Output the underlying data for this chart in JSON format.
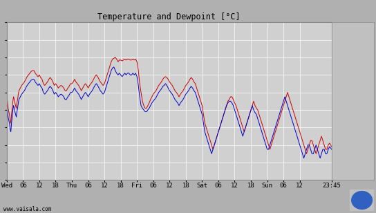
{
  "title": "Temperature and Dewpoint [°C]",
  "fig_bg_color": "#b0b0b0",
  "plot_bg_color": "#d0d0d0",
  "panel_bg_color": "#c0c0c0",
  "grid_color": "#ffffff",
  "temp_color": "#cc0000",
  "dewp_color": "#0000cc",
  "ylim": [
    -14,
    4
  ],
  "yticks": [
    -14,
    -12,
    -10,
    -8,
    -6,
    -4,
    -2,
    0,
    2,
    4
  ],
  "xlabel_bottom": "www.vaisala.com",
  "xtick_labels": [
    "Wed",
    "06",
    "12",
    "18",
    "Thu",
    "06",
    "12",
    "18",
    "Fri",
    "06",
    "12",
    "18",
    "Sat",
    "06",
    "12",
    "18",
    "Sun",
    "06",
    "12",
    "23:45"
  ],
  "xtick_positions": [
    0,
    6,
    12,
    18,
    24,
    30,
    36,
    42,
    48,
    54,
    60,
    66,
    72,
    78,
    84,
    90,
    96,
    102,
    108,
    119.75
  ],
  "total_hours": 119.75,
  "line_width": 0.7,
  "temp_data": [
    [
      0,
      -4.5
    ],
    [
      0.25,
      -5.0
    ],
    [
      0.5,
      -5.8
    ],
    [
      0.75,
      -6.2
    ],
    [
      1,
      -6.5
    ],
    [
      1.25,
      -7.2
    ],
    [
      1.5,
      -7.5
    ],
    [
      1.75,
      -6.5
    ],
    [
      2,
      -5.8
    ],
    [
      2.25,
      -5.0
    ],
    [
      2.5,
      -4.5
    ],
    [
      2.75,
      -4.8
    ],
    [
      3,
      -5.2
    ],
    [
      3.25,
      -5.5
    ],
    [
      3.5,
      -5.8
    ],
    [
      3.75,
      -5.2
    ],
    [
      4,
      -4.8
    ],
    [
      4.25,
      -4.2
    ],
    [
      4.5,
      -3.8
    ],
    [
      5,
      -3.5
    ],
    [
      5.5,
      -3.2
    ],
    [
      6,
      -3.0
    ],
    [
      6.5,
      -2.8
    ],
    [
      7,
      -2.5
    ],
    [
      7.5,
      -2.2
    ],
    [
      8,
      -2.0
    ],
    [
      8.5,
      -1.8
    ],
    [
      9,
      -1.6
    ],
    [
      9.5,
      -1.5
    ],
    [
      10,
      -1.5
    ],
    [
      10.5,
      -1.8
    ],
    [
      11,
      -2.0
    ],
    [
      11.5,
      -2.2
    ],
    [
      12,
      -2.0
    ],
    [
      12.5,
      -2.3
    ],
    [
      13,
      -2.5
    ],
    [
      13.5,
      -3.0
    ],
    [
      14,
      -3.2
    ],
    [
      14.5,
      -3.0
    ],
    [
      15,
      -2.8
    ],
    [
      15.5,
      -2.5
    ],
    [
      16,
      -2.3
    ],
    [
      16.5,
      -2.5
    ],
    [
      17,
      -2.8
    ],
    [
      17.5,
      -3.2
    ],
    [
      18,
      -3.0
    ],
    [
      18.5,
      -3.2
    ],
    [
      19,
      -3.5
    ],
    [
      19.5,
      -3.3
    ],
    [
      20,
      -3.2
    ],
    [
      20.5,
      -3.3
    ],
    [
      21,
      -3.5
    ],
    [
      21.5,
      -3.8
    ],
    [
      22,
      -3.8
    ],
    [
      22.5,
      -3.5
    ],
    [
      23,
      -3.3
    ],
    [
      23.5,
      -3.0
    ],
    [
      24,
      -3.0
    ],
    [
      24.5,
      -2.8
    ],
    [
      25,
      -2.5
    ],
    [
      25.5,
      -2.8
    ],
    [
      26,
      -3.0
    ],
    [
      26.5,
      -3.2
    ],
    [
      27,
      -3.5
    ],
    [
      27.5,
      -3.8
    ],
    [
      28,
      -3.5
    ],
    [
      28.5,
      -3.2
    ],
    [
      29,
      -3.0
    ],
    [
      29.5,
      -3.2
    ],
    [
      30,
      -3.5
    ],
    [
      30.5,
      -3.2
    ],
    [
      31,
      -3.0
    ],
    [
      31.5,
      -2.8
    ],
    [
      32,
      -2.5
    ],
    [
      32.5,
      -2.2
    ],
    [
      33,
      -2.0
    ],
    [
      33.5,
      -2.2
    ],
    [
      34,
      -2.5
    ],
    [
      34.5,
      -2.8
    ],
    [
      35,
      -3.0
    ],
    [
      35.5,
      -3.2
    ],
    [
      36,
      -3.0
    ],
    [
      36.5,
      -2.5
    ],
    [
      37,
      -2.0
    ],
    [
      37.5,
      -1.5
    ],
    [
      38,
      -1.0
    ],
    [
      38.5,
      -0.5
    ],
    [
      39,
      -0.2
    ],
    [
      39.5,
      -0.1
    ],
    [
      40,
      0.0
    ],
    [
      40.25,
      -0.1
    ],
    [
      40.5,
      -0.2
    ],
    [
      41,
      -0.5
    ],
    [
      41.5,
      -0.3
    ],
    [
      42,
      -0.3
    ],
    [
      42.5,
      -0.4
    ],
    [
      43,
      -0.3
    ],
    [
      43.5,
      -0.2
    ],
    [
      44,
      -0.3
    ],
    [
      44.5,
      -0.2
    ],
    [
      45,
      -0.2
    ],
    [
      45.5,
      -0.3
    ],
    [
      46,
      -0.3
    ],
    [
      46.5,
      -0.2
    ],
    [
      47,
      -0.3
    ],
    [
      47.5,
      -0.2
    ],
    [
      48,
      -0.5
    ],
    [
      48.5,
      -1.5
    ],
    [
      49,
      -3.0
    ],
    [
      49.5,
      -4.0
    ],
    [
      50,
      -5.0
    ],
    [
      50.5,
      -5.5
    ],
    [
      51,
      -5.8
    ],
    [
      51.5,
      -5.8
    ],
    [
      52,
      -5.5
    ],
    [
      52.5,
      -5.2
    ],
    [
      53,
      -4.8
    ],
    [
      53.5,
      -4.5
    ],
    [
      54,
      -4.2
    ],
    [
      54.5,
      -4.0
    ],
    [
      55,
      -3.8
    ],
    [
      55.5,
      -3.5
    ],
    [
      56,
      -3.2
    ],
    [
      56.5,
      -3.0
    ],
    [
      57,
      -2.8
    ],
    [
      57.5,
      -2.5
    ],
    [
      58,
      -2.3
    ],
    [
      58.5,
      -2.2
    ],
    [
      59,
      -2.3
    ],
    [
      59.5,
      -2.5
    ],
    [
      60,
      -2.8
    ],
    [
      60.5,
      -3.0
    ],
    [
      61,
      -3.2
    ],
    [
      61.5,
      -3.5
    ],
    [
      62,
      -3.8
    ],
    [
      62.5,
      -4.0
    ],
    [
      63,
      -4.2
    ],
    [
      63.5,
      -4.5
    ],
    [
      64,
      -4.2
    ],
    [
      64.5,
      -4.0
    ],
    [
      65,
      -3.8
    ],
    [
      65.5,
      -3.5
    ],
    [
      66,
      -3.2
    ],
    [
      66.5,
      -3.0
    ],
    [
      67,
      -2.8
    ],
    [
      67.5,
      -2.5
    ],
    [
      68,
      -2.3
    ],
    [
      68.5,
      -2.5
    ],
    [
      69,
      -2.8
    ],
    [
      69.5,
      -3.0
    ],
    [
      70,
      -3.5
    ],
    [
      70.5,
      -4.0
    ],
    [
      71,
      -4.5
    ],
    [
      71.5,
      -5.0
    ],
    [
      72,
      -5.5
    ],
    [
      72.5,
      -6.5
    ],
    [
      73,
      -7.5
    ],
    [
      73.5,
      -8.0
    ],
    [
      74,
      -8.5
    ],
    [
      74.5,
      -9.0
    ],
    [
      75,
      -9.5
    ],
    [
      75.5,
      -10.0
    ],
    [
      76,
      -10.5
    ],
    [
      76.5,
      -10.0
    ],
    [
      77,
      -9.5
    ],
    [
      77.5,
      -9.0
    ],
    [
      78,
      -8.5
    ],
    [
      78.5,
      -8.0
    ],
    [
      79,
      -7.5
    ],
    [
      79.5,
      -7.0
    ],
    [
      80,
      -6.5
    ],
    [
      80.5,
      -6.0
    ],
    [
      81,
      -5.5
    ],
    [
      81.5,
      -5.0
    ],
    [
      82,
      -4.8
    ],
    [
      82.5,
      -4.5
    ],
    [
      83,
      -4.5
    ],
    [
      83.5,
      -4.8
    ],
    [
      84,
      -5.2
    ],
    [
      84.5,
      -5.5
    ],
    [
      85,
      -6.0
    ],
    [
      85.5,
      -6.5
    ],
    [
      86,
      -7.0
    ],
    [
      86.5,
      -7.5
    ],
    [
      87,
      -8.0
    ],
    [
      87.5,
      -8.5
    ],
    [
      88,
      -8.0
    ],
    [
      88.5,
      -7.5
    ],
    [
      89,
      -7.0
    ],
    [
      89.5,
      -6.5
    ],
    [
      90,
      -6.0
    ],
    [
      90.5,
      -5.5
    ],
    [
      91,
      -5.0
    ],
    [
      91.5,
      -5.5
    ],
    [
      92,
      -5.8
    ],
    [
      92.5,
      -6.0
    ],
    [
      93,
      -6.5
    ],
    [
      93.5,
      -7.0
    ],
    [
      94,
      -7.5
    ],
    [
      94.5,
      -8.0
    ],
    [
      95,
      -8.5
    ],
    [
      95.5,
      -9.0
    ],
    [
      96,
      -9.5
    ],
    [
      96.5,
      -10.0
    ],
    [
      97,
      -10.5
    ],
    [
      97.5,
      -10.0
    ],
    [
      98,
      -9.5
    ],
    [
      98.5,
      -9.0
    ],
    [
      99,
      -8.5
    ],
    [
      99.5,
      -8.0
    ],
    [
      100,
      -7.5
    ],
    [
      100.5,
      -7.0
    ],
    [
      101,
      -6.5
    ],
    [
      101.5,
      -6.0
    ],
    [
      102,
      -5.5
    ],
    [
      102.5,
      -5.0
    ],
    [
      103,
      -4.5
    ],
    [
      103.5,
      -4.0
    ],
    [
      104,
      -4.5
    ],
    [
      104.5,
      -5.0
    ],
    [
      105,
      -5.5
    ],
    [
      105.5,
      -6.0
    ],
    [
      106,
      -6.5
    ],
    [
      106.5,
      -7.0
    ],
    [
      107,
      -7.5
    ],
    [
      107.5,
      -8.0
    ],
    [
      108,
      -8.5
    ],
    [
      108.5,
      -9.0
    ],
    [
      109,
      -9.5
    ],
    [
      109.5,
      -10.0
    ],
    [
      110,
      -10.5
    ],
    [
      110.5,
      -11.0
    ],
    [
      111,
      -10.5
    ],
    [
      111.5,
      -10.0
    ],
    [
      112,
      -9.5
    ],
    [
      112.5,
      -9.5
    ],
    [
      113,
      -10.0
    ],
    [
      113.5,
      -10.5
    ],
    [
      114,
      -11.0
    ],
    [
      114.5,
      -10.5
    ],
    [
      115,
      -10.0
    ],
    [
      115.5,
      -9.5
    ],
    [
      116,
      -9.0
    ],
    [
      116.5,
      -9.5
    ],
    [
      117,
      -10.0
    ],
    [
      117.5,
      -10.5
    ],
    [
      118,
      -10.5
    ],
    [
      118.5,
      -10.0
    ],
    [
      119,
      -9.8
    ],
    [
      119.75,
      -10.2
    ]
  ],
  "dewp_data": [
    [
      0,
      -5.5
    ],
    [
      0.25,
      -6.0
    ],
    [
      0.5,
      -6.8
    ],
    [
      0.75,
      -7.2
    ],
    [
      1,
      -7.5
    ],
    [
      1.25,
      -8.2
    ],
    [
      1.5,
      -8.5
    ],
    [
      1.75,
      -7.5
    ],
    [
      2,
      -6.8
    ],
    [
      2.25,
      -6.0
    ],
    [
      2.5,
      -5.5
    ],
    [
      2.75,
      -5.8
    ],
    [
      3,
      -6.2
    ],
    [
      3.25,
      -6.5
    ],
    [
      3.5,
      -6.8
    ],
    [
      3.75,
      -6.2
    ],
    [
      4,
      -5.8
    ],
    [
      4.25,
      -5.2
    ],
    [
      4.5,
      -4.8
    ],
    [
      5,
      -4.5
    ],
    [
      5.5,
      -4.2
    ],
    [
      6,
      -4.0
    ],
    [
      6.5,
      -3.8
    ],
    [
      7,
      -3.5
    ],
    [
      7.5,
      -3.2
    ],
    [
      8,
      -3.0
    ],
    [
      8.5,
      -2.8
    ],
    [
      9,
      -2.6
    ],
    [
      9.5,
      -2.5
    ],
    [
      10,
      -2.5
    ],
    [
      10.5,
      -2.8
    ],
    [
      11,
      -3.0
    ],
    [
      11.5,
      -3.2
    ],
    [
      12,
      -3.0
    ],
    [
      12.5,
      -3.3
    ],
    [
      13,
      -3.5
    ],
    [
      13.5,
      -4.0
    ],
    [
      14,
      -4.2
    ],
    [
      14.5,
      -4.0
    ],
    [
      15,
      -3.8
    ],
    [
      15.5,
      -3.5
    ],
    [
      16,
      -3.3
    ],
    [
      16.5,
      -3.5
    ],
    [
      17,
      -3.8
    ],
    [
      17.5,
      -4.2
    ],
    [
      18,
      -4.0
    ],
    [
      18.5,
      -4.2
    ],
    [
      19,
      -4.5
    ],
    [
      19.5,
      -4.3
    ],
    [
      20,
      -4.2
    ],
    [
      20.5,
      -4.3
    ],
    [
      21,
      -4.5
    ],
    [
      21.5,
      -4.8
    ],
    [
      22,
      -4.8
    ],
    [
      22.5,
      -4.5
    ],
    [
      23,
      -4.3
    ],
    [
      23.5,
      -4.0
    ],
    [
      24,
      -4.0
    ],
    [
      24.5,
      -3.8
    ],
    [
      25,
      -3.5
    ],
    [
      25.5,
      -3.8
    ],
    [
      26,
      -4.0
    ],
    [
      26.5,
      -4.2
    ],
    [
      27,
      -4.5
    ],
    [
      27.5,
      -4.8
    ],
    [
      28,
      -4.5
    ],
    [
      28.5,
      -4.2
    ],
    [
      29,
      -4.0
    ],
    [
      29.5,
      -4.2
    ],
    [
      30,
      -4.5
    ],
    [
      30.5,
      -4.2
    ],
    [
      31,
      -4.0
    ],
    [
      31.5,
      -3.8
    ],
    [
      32,
      -3.5
    ],
    [
      32.5,
      -3.2
    ],
    [
      33,
      -3.0
    ],
    [
      33.5,
      -3.2
    ],
    [
      34,
      -3.5
    ],
    [
      34.5,
      -3.8
    ],
    [
      35,
      -4.0
    ],
    [
      35.5,
      -4.2
    ],
    [
      36,
      -4.0
    ],
    [
      36.5,
      -3.5
    ],
    [
      37,
      -3.0
    ],
    [
      37.5,
      -2.5
    ],
    [
      38,
      -2.0
    ],
    [
      38.5,
      -1.5
    ],
    [
      39,
      -1.2
    ],
    [
      39.5,
      -1.1
    ],
    [
      40,
      -1.5
    ],
    [
      40.5,
      -1.8
    ],
    [
      41,
      -2.0
    ],
    [
      41.5,
      -1.8
    ],
    [
      42,
      -2.0
    ],
    [
      42.5,
      -2.2
    ],
    [
      43,
      -2.0
    ],
    [
      43.5,
      -1.8
    ],
    [
      44,
      -2.0
    ],
    [
      44.5,
      -1.8
    ],
    [
      45,
      -1.8
    ],
    [
      45.5,
      -2.0
    ],
    [
      46,
      -2.0
    ],
    [
      46.5,
      -1.8
    ],
    [
      47,
      -2.0
    ],
    [
      47.5,
      -1.8
    ],
    [
      48,
      -2.2
    ],
    [
      48.5,
      -3.2
    ],
    [
      49,
      -4.5
    ],
    [
      49.5,
      -5.5
    ],
    [
      50,
      -5.8
    ],
    [
      50.5,
      -6.0
    ],
    [
      51,
      -6.2
    ],
    [
      51.5,
      -6.2
    ],
    [
      52,
      -6.0
    ],
    [
      52.5,
      -5.8
    ],
    [
      53,
      -5.5
    ],
    [
      53.5,
      -5.2
    ],
    [
      54,
      -5.0
    ],
    [
      54.5,
      -4.8
    ],
    [
      55,
      -4.6
    ],
    [
      55.5,
      -4.3
    ],
    [
      56,
      -4.0
    ],
    [
      56.5,
      -3.8
    ],
    [
      57,
      -3.6
    ],
    [
      57.5,
      -3.3
    ],
    [
      58,
      -3.2
    ],
    [
      58.5,
      -3.0
    ],
    [
      59,
      -3.2
    ],
    [
      59.5,
      -3.5
    ],
    [
      60,
      -3.8
    ],
    [
      60.5,
      -4.0
    ],
    [
      61,
      -4.2
    ],
    [
      61.5,
      -4.5
    ],
    [
      62,
      -4.8
    ],
    [
      62.5,
      -5.0
    ],
    [
      63,
      -5.2
    ],
    [
      63.5,
      -5.5
    ],
    [
      64,
      -5.2
    ],
    [
      64.5,
      -5.0
    ],
    [
      65,
      -4.8
    ],
    [
      65.5,
      -4.5
    ],
    [
      66,
      -4.2
    ],
    [
      66.5,
      -4.0
    ],
    [
      67,
      -3.8
    ],
    [
      67.5,
      -3.5
    ],
    [
      68,
      -3.3
    ],
    [
      68.5,
      -3.5
    ],
    [
      69,
      -3.8
    ],
    [
      69.5,
      -4.0
    ],
    [
      70,
      -4.5
    ],
    [
      70.5,
      -5.0
    ],
    [
      71,
      -5.5
    ],
    [
      71.5,
      -6.0
    ],
    [
      72,
      -6.5
    ],
    [
      72.5,
      -7.5
    ],
    [
      73,
      -8.5
    ],
    [
      73.5,
      -9.0
    ],
    [
      74,
      -9.5
    ],
    [
      74.5,
      -10.0
    ],
    [
      75,
      -10.5
    ],
    [
      75.5,
      -11.0
    ],
    [
      76,
      -10.5
    ],
    [
      76.5,
      -10.0
    ],
    [
      77,
      -9.5
    ],
    [
      77.5,
      -9.0
    ],
    [
      78,
      -8.5
    ],
    [
      78.5,
      -8.0
    ],
    [
      79,
      -7.5
    ],
    [
      79.5,
      -7.0
    ],
    [
      80,
      -6.5
    ],
    [
      80.5,
      -6.0
    ],
    [
      81,
      -5.5
    ],
    [
      81.5,
      -5.2
    ],
    [
      82,
      -5.0
    ],
    [
      82.5,
      -5.0
    ],
    [
      83,
      -5.2
    ],
    [
      83.5,
      -5.5
    ],
    [
      84,
      -6.0
    ],
    [
      84.5,
      -6.5
    ],
    [
      85,
      -7.0
    ],
    [
      85.5,
      -7.5
    ],
    [
      86,
      -8.0
    ],
    [
      86.5,
      -8.5
    ],
    [
      87,
      -9.0
    ],
    [
      87.5,
      -8.5
    ],
    [
      88,
      -8.0
    ],
    [
      88.5,
      -7.5
    ],
    [
      89,
      -7.0
    ],
    [
      89.5,
      -6.5
    ],
    [
      90,
      -6.0
    ],
    [
      90.5,
      -5.5
    ],
    [
      91,
      -6.0
    ],
    [
      91.5,
      -6.3
    ],
    [
      92,
      -6.5
    ],
    [
      92.5,
      -7.0
    ],
    [
      93,
      -7.5
    ],
    [
      93.5,
      -8.0
    ],
    [
      94,
      -8.5
    ],
    [
      94.5,
      -9.0
    ],
    [
      95,
      -9.5
    ],
    [
      95.5,
      -10.0
    ],
    [
      96,
      -10.5
    ],
    [
      96.5,
      -10.5
    ],
    [
      97,
      -10.0
    ],
    [
      97.5,
      -9.5
    ],
    [
      98,
      -9.0
    ],
    [
      98.5,
      -8.5
    ],
    [
      99,
      -8.0
    ],
    [
      99.5,
      -7.5
    ],
    [
      100,
      -7.0
    ],
    [
      100.5,
      -6.5
    ],
    [
      101,
      -6.0
    ],
    [
      101.5,
      -5.5
    ],
    [
      102,
      -5.0
    ],
    [
      102.5,
      -4.5
    ],
    [
      103,
      -5.0
    ],
    [
      103.5,
      -5.5
    ],
    [
      104,
      -6.0
    ],
    [
      104.5,
      -6.5
    ],
    [
      105,
      -7.0
    ],
    [
      105.5,
      -7.5
    ],
    [
      106,
      -8.0
    ],
    [
      106.5,
      -8.5
    ],
    [
      107,
      -9.0
    ],
    [
      107.5,
      -9.5
    ],
    [
      108,
      -10.0
    ],
    [
      108.5,
      -10.5
    ],
    [
      109,
      -11.0
    ],
    [
      109.5,
      -11.5
    ],
    [
      110,
      -11.0
    ],
    [
      110.5,
      -10.5
    ],
    [
      111,
      -10.0
    ],
    [
      111.5,
      -10.0
    ],
    [
      112,
      -10.5
    ],
    [
      112.5,
      -11.0
    ],
    [
      113,
      -11.0
    ],
    [
      113.5,
      -10.5
    ],
    [
      114,
      -10.0
    ],
    [
      114.5,
      -10.5
    ],
    [
      115,
      -11.0
    ],
    [
      115.5,
      -11.5
    ],
    [
      116,
      -11.0
    ],
    [
      116.5,
      -10.5
    ],
    [
      117,
      -10.5
    ],
    [
      117.5,
      -11.0
    ],
    [
      118,
      -11.0
    ],
    [
      118.5,
      -10.5
    ],
    [
      119,
      -10.2
    ],
    [
      119.75,
      -10.5
    ]
  ]
}
